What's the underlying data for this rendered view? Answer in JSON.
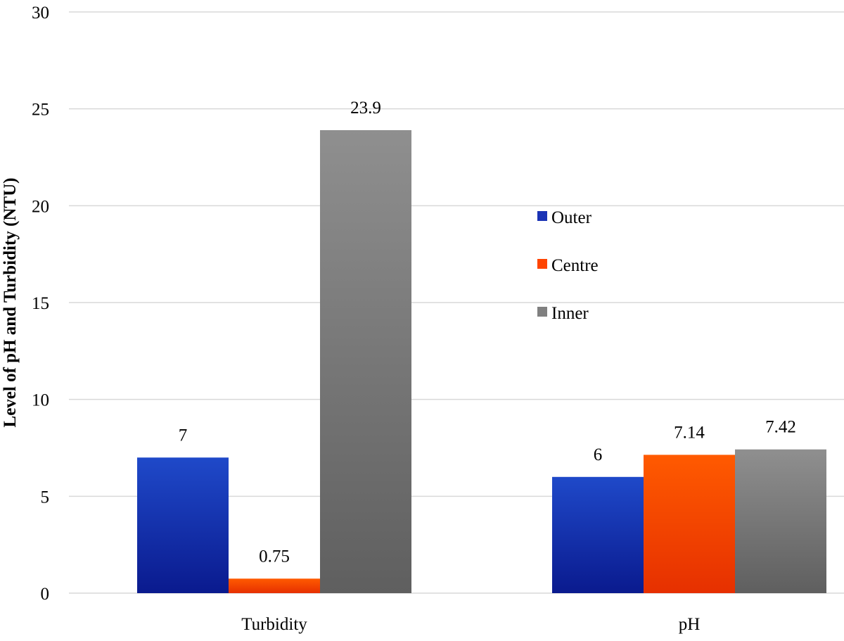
{
  "chart_data": {
    "type": "bar",
    "title": "",
    "xlabel": "",
    "ylabel": "Level of pH and Turbidity (NTU)",
    "ylim": [
      0,
      30
    ],
    "yticks": [
      0,
      5,
      10,
      15,
      20,
      25,
      30
    ],
    "grid": true,
    "legend_position": "center",
    "categories": [
      "Turbidity",
      "pH"
    ],
    "series": [
      {
        "name": "Outer",
        "values": [
          7,
          6
        ],
        "labels": [
          "7",
          "6"
        ],
        "color": "#1a33b5"
      },
      {
        "name": "Centre",
        "values": [
          0.75,
          7.14
        ],
        "labels": [
          "0.75",
          "7.14"
        ],
        "color": "#ff4400"
      },
      {
        "name": "Inner",
        "values": [
          23.9,
          7.42
        ],
        "labels": [
          "23.9",
          "7.42"
        ],
        "color": "#808080"
      }
    ]
  }
}
